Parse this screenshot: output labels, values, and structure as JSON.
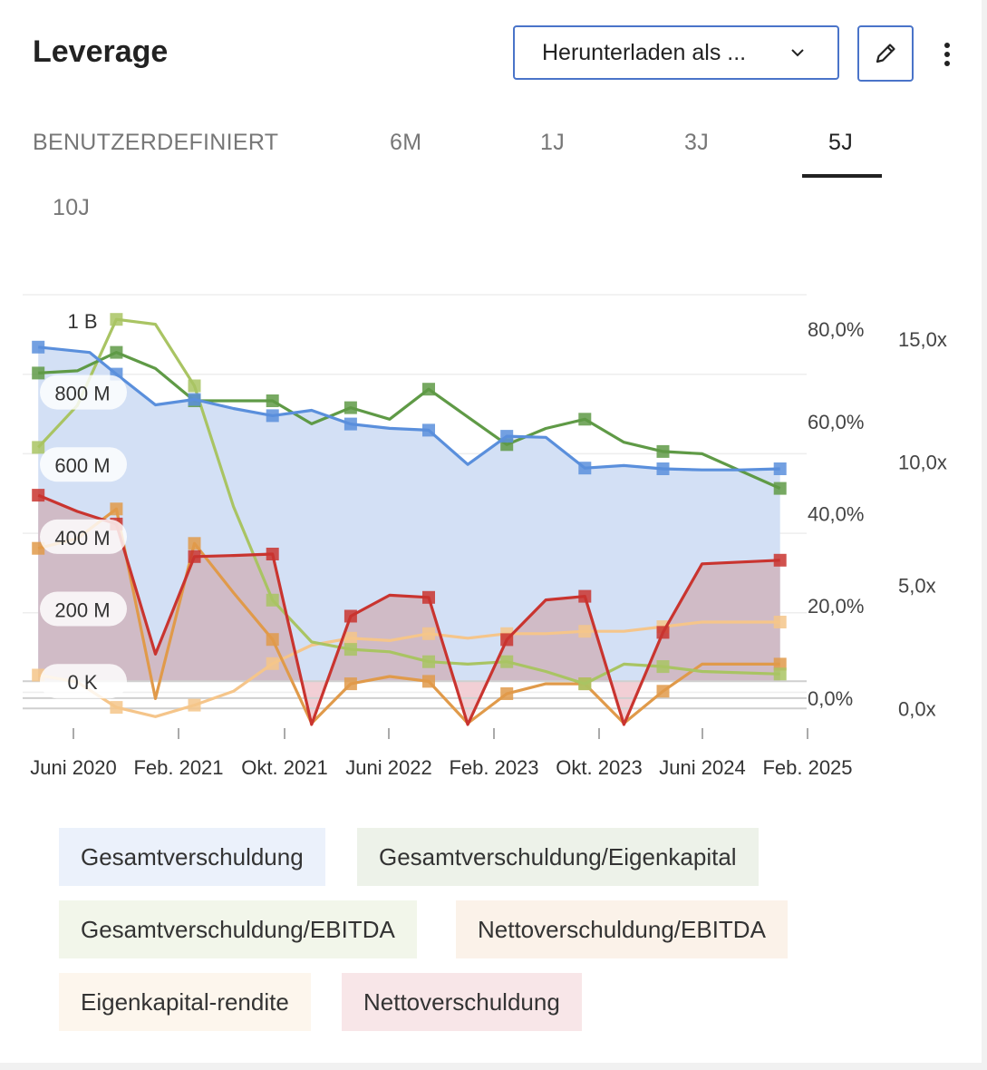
{
  "header": {
    "title": "Leverage",
    "download_label": "Herunterladen als ...",
    "icons": {
      "dropdown": "chevron-down-icon",
      "edit": "pencil-icon",
      "more": "more-vertical-icon"
    }
  },
  "tabs": [
    {
      "label": "BENUTZERDEFINIERT",
      "active": false
    },
    {
      "label": "6M",
      "active": false
    },
    {
      "label": "1J",
      "active": false
    },
    {
      "label": "3J",
      "active": false
    },
    {
      "label": "5J",
      "active": true
    },
    {
      "label": "10J",
      "active": false
    }
  ],
  "chart_data": {
    "type": "line",
    "title": "",
    "x_ticks": [
      "Juni 2020",
      "Feb. 2021",
      "Okt. 2021",
      "Juni 2022",
      "Feb. 2023",
      "Okt. 2023",
      "Juni 2024",
      "Feb. 2025"
    ],
    "x_range": [
      2020.15,
      2025.17
    ],
    "axes": {
      "left": {
        "ticks": [
          "0 K",
          "200 M",
          "400 M",
          "600 M",
          "800 M",
          "1 B"
        ],
        "range": [
          -130000000,
          1070000000
        ]
      },
      "percent": {
        "ticks": [
          "0,0%",
          "20,0%",
          "40,0%",
          "60,0%",
          "80,0%"
        ],
        "range": [
          -6.5,
          87.5
        ]
      },
      "ratio": {
        "ticks": [
          "0,0x",
          "5,0x",
          "10,0x",
          "15,0x"
        ],
        "range": [
          -0.8,
          16.8
        ]
      }
    },
    "grid": true,
    "legend_position": "bottom",
    "series": [
      {
        "name": "Gesamtverschuldung",
        "axis": "left",
        "color": "#5a8fdc",
        "fill": "#d3e0f5",
        "x": [
          2020.25,
          2020.58,
          2020.75,
          2021.0,
          2021.25,
          2021.5,
          2021.75,
          2022.0,
          2022.25,
          2022.5,
          2022.75,
          2023.0,
          2023.25,
          2023.5,
          2023.75,
          2024.0,
          2024.25,
          2024.5,
          2024.75,
          2025.0
        ],
        "y": [
          925000000,
          910000000,
          850000000,
          765000000,
          780000000,
          755000000,
          735000000,
          750000000,
          712000000,
          700000000,
          695000000,
          600000000,
          678000000,
          675000000,
          590000000,
          597000000,
          588000000,
          585000000,
          585000000,
          588000000
        ],
        "markers": [
          true,
          false,
          true,
          false,
          true,
          false,
          true,
          false,
          true,
          false,
          true,
          false,
          true,
          false,
          true,
          false,
          true,
          false,
          false,
          true
        ]
      },
      {
        "name": "Nettoverschuldung",
        "axis": "left",
        "color": "#c9342f",
        "fill": "#d0bbc6",
        "fill_negative": "#f2cfd5",
        "x": [
          2020.25,
          2020.5,
          2020.75,
          2021.0,
          2021.25,
          2021.5,
          2021.75,
          2022.0,
          2022.25,
          2022.5,
          2022.75,
          2023.0,
          2023.25,
          2023.5,
          2023.75,
          2024.0,
          2024.25,
          2024.5,
          2025.0
        ],
        "y": [
          515000000,
          470000000,
          435000000,
          75000000,
          345000000,
          348000000,
          352000000,
          -120000000,
          180000000,
          238000000,
          232000000,
          -120000000,
          115000000,
          225000000,
          235000000,
          -120000000,
          135000000,
          325000000,
          335000000
        ],
        "markers": [
          true,
          false,
          true,
          false,
          true,
          false,
          true,
          false,
          true,
          false,
          true,
          false,
          true,
          false,
          true,
          false,
          true,
          false,
          true
        ]
      },
      {
        "name": "Gesamtverschuldung/Eigenkapital",
        "axis": "percent",
        "color": "#5f9a46",
        "x": [
          2020.25,
          2020.5,
          2020.75,
          2021.0,
          2021.25,
          2021.5,
          2021.75,
          2022.0,
          2022.25,
          2022.5,
          2022.75,
          2023.0,
          2023.25,
          2023.5,
          2023.75,
          2024.0,
          2024.25,
          2024.5,
          2025.0
        ],
        "y": [
          70.5,
          71.0,
          75.0,
          71.5,
          64.5,
          64.5,
          64.5,
          59.5,
          63.0,
          60.5,
          67.0,
          61.0,
          55.0,
          58.5,
          60.5,
          55.5,
          53.5,
          53.0,
          45.5
        ],
        "markers": [
          true,
          false,
          true,
          false,
          true,
          false,
          true,
          false,
          true,
          false,
          true,
          false,
          true,
          false,
          true,
          false,
          true,
          false,
          true
        ]
      },
      {
        "name": "Gesamtverschuldung/EBITDA",
        "axis": "ratio",
        "color": "#a9c463",
        "x": [
          2020.25,
          2020.5,
          2020.75,
          2021.0,
          2021.25,
          2021.5,
          2021.75,
          2022.0,
          2022.25,
          2022.5,
          2022.75,
          2023.0,
          2023.25,
          2023.5,
          2023.75,
          2024.0,
          2024.25,
          2024.5,
          2025.0
        ],
        "y": [
          10.6,
          12.3,
          15.8,
          15.6,
          13.1,
          8.2,
          4.4,
          2.7,
          2.4,
          2.3,
          1.9,
          1.8,
          1.9,
          1.5,
          1.0,
          1.8,
          1.7,
          1.5,
          1.4
        ],
        "markers": [
          true,
          false,
          true,
          false,
          true,
          false,
          true,
          false,
          true,
          false,
          true,
          false,
          true,
          false,
          true,
          false,
          true,
          false,
          true
        ]
      },
      {
        "name": "Nettoverschuldung/EBITDA",
        "axis": "ratio",
        "color": "#e09a4a",
        "x": [
          2020.25,
          2020.5,
          2020.75,
          2021.0,
          2021.25,
          2021.5,
          2021.75,
          2022.0,
          2022.25,
          2022.5,
          2022.75,
          2023.0,
          2023.25,
          2023.5,
          2023.75,
          2024.0,
          2024.25,
          2024.5,
          2025.0
        ],
        "y": [
          6.5,
          6.9,
          8.1,
          0.4,
          6.7,
          4.7,
          2.8,
          -0.6,
          1.0,
          1.3,
          1.1,
          -0.6,
          0.6,
          1.0,
          1.0,
          -0.6,
          0.7,
          1.8,
          1.8
        ],
        "markers": [
          true,
          false,
          true,
          false,
          true,
          false,
          true,
          false,
          true,
          false,
          true,
          false,
          true,
          false,
          true,
          false,
          true,
          false,
          true
        ]
      },
      {
        "name": "Eigenkapital-rendite",
        "axis": "percent",
        "color": "#f5c58a",
        "x": [
          2020.25,
          2020.5,
          2020.75,
          2021.0,
          2021.25,
          2021.5,
          2021.75,
          2022.0,
          2022.25,
          2022.5,
          2022.75,
          2023.0,
          2023.25,
          2023.5,
          2023.75,
          2024.0,
          2024.25,
          2024.5,
          2025.0
        ],
        "y": [
          5.0,
          3.5,
          -2.0,
          -4.0,
          -1.5,
          1.5,
          7.5,
          11.5,
          13.0,
          12.5,
          14.0,
          13.0,
          14.0,
          14.0,
          14.5,
          14.5,
          15.5,
          16.5,
          16.5
        ],
        "markers": [
          true,
          false,
          true,
          false,
          true,
          false,
          true,
          false,
          true,
          false,
          true,
          false,
          true,
          false,
          true,
          false,
          true,
          false,
          true
        ]
      }
    ]
  }
}
